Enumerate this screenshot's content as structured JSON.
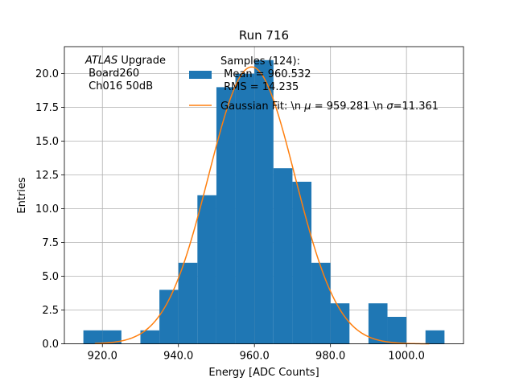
{
  "chart_data": {
    "type": "bar",
    "title": "Run 716",
    "xlabel": "Energy [ADC Counts]",
    "ylabel": "Entries",
    "xlim": [
      910,
      1015
    ],
    "ylim": [
      0,
      22
    ],
    "grid": true,
    "x_ticks": [
      920,
      940,
      960,
      980,
      1000
    ],
    "x_tick_labels": [
      "920.0",
      "940.0",
      "960.0",
      "980.0",
      "1000.0"
    ],
    "y_ticks": [
      0,
      2.5,
      5,
      7.5,
      10,
      12.5,
      15,
      17.5,
      20
    ],
    "y_tick_labels": [
      "0.0",
      "2.5",
      "5.0",
      "7.5",
      "10.0",
      "12.5",
      "15.0",
      "17.5",
      "20.0"
    ],
    "bin_width": 5,
    "bins": [
      {
        "x0": 915,
        "count": 1
      },
      {
        "x0": 920,
        "count": 1
      },
      {
        "x0": 925,
        "count": 0
      },
      {
        "x0": 930,
        "count": 1
      },
      {
        "x0": 935,
        "count": 4
      },
      {
        "x0": 940,
        "count": 6
      },
      {
        "x0": 945,
        "count": 11
      },
      {
        "x0": 950,
        "count": 19
      },
      {
        "x0": 955,
        "count": 20
      },
      {
        "x0": 960,
        "count": 21
      },
      {
        "x0": 965,
        "count": 13
      },
      {
        "x0": 970,
        "count": 12
      },
      {
        "x0": 975,
        "count": 6
      },
      {
        "x0": 980,
        "count": 3
      },
      {
        "x0": 985,
        "count": 0
      },
      {
        "x0": 990,
        "count": 3
      },
      {
        "x0": 995,
        "count": 2
      },
      {
        "x0": 1000,
        "count": 0
      },
      {
        "x0": 1005,
        "count": 1
      }
    ],
    "fit": {
      "amplitude": 20.5,
      "mu": 959.281,
      "sigma": 11.361,
      "x_range": [
        918,
        1006
      ]
    },
    "series": [
      {
        "name": "Samples (124):\n Mean = 960.532\n RMS = 14.235",
        "kind": "histogram",
        "color": "#1f77b4"
      },
      {
        "name": "Gaussian Fit: \\n $\\mu$ = 959.281 \\n $\\sigma$=11.361",
        "kind": "line",
        "color": "#ff7f0e"
      }
    ],
    "legend": {
      "placement": "top-right",
      "hist_label_lines": [
        "Samples (124):",
        " Mean = 960.532",
        " RMS = 14.235"
      ],
      "fit_label": {
        "prefix": "Gaussian Fit: \\n ",
        "mu_symbol": "μ",
        "mu_text": " = 959.281 \\n ",
        "sigma_symbol": "σ",
        "sigma_text": "=11.361"
      }
    },
    "annotation": {
      "line1_italic": "ATLAS",
      "line1_rest": " Upgrade",
      "line2": " Board260",
      "line3": " Ch016 50dB"
    }
  }
}
